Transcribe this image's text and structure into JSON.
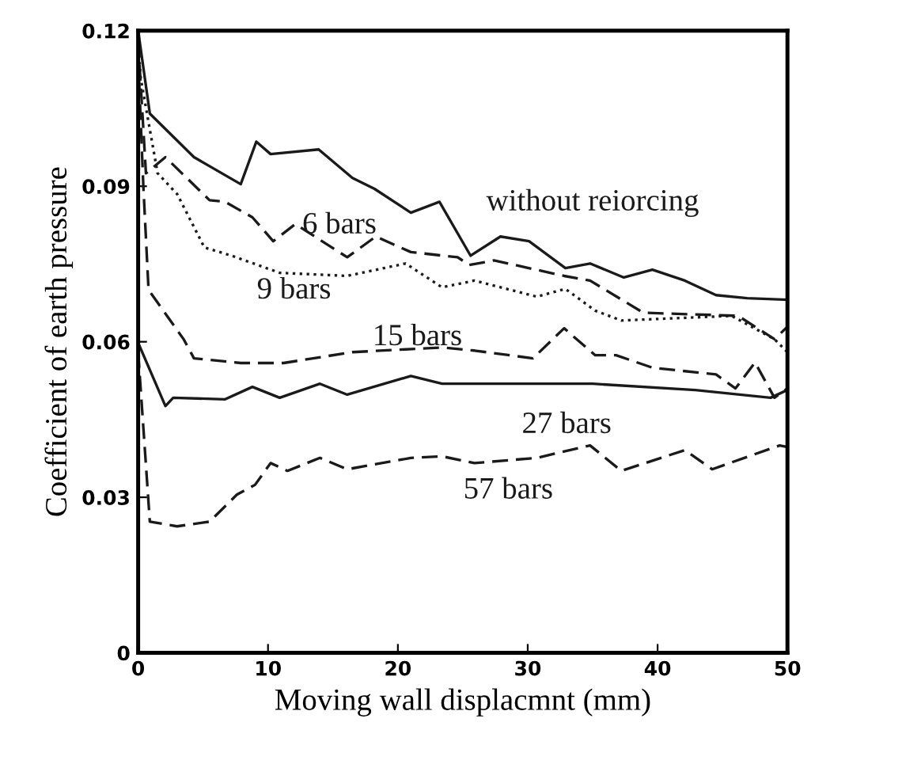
{
  "chart_data": {
    "type": "line",
    "xlabel": "Moving wall displacmnt (mm)",
    "ylabel": "Coefficient of earth pressure",
    "xlim": [
      0,
      50
    ],
    "xticks": [
      0,
      10,
      20,
      30,
      40,
      50
    ],
    "ylim": [
      0,
      0.12
    ],
    "yticks": [
      {
        "value": 0,
        "label": "0"
      },
      {
        "value": 0.03,
        "label": "0.03"
      },
      {
        "value": 0.06,
        "label": "0.06"
      },
      {
        "value": 0.09,
        "label": "0.09"
      },
      {
        "value": 0.12,
        "label": "0.12"
      }
    ],
    "grid": false,
    "marker": "none",
    "series": [
      {
        "name": "without reiorcing",
        "color": "#1a1a1a",
        "line_style": "solid",
        "x": [
          0,
          0.9,
          4.3,
          7.9,
          9.1,
          10.2,
          13.9,
          16.5,
          18.2,
          21,
          23.2,
          25.6,
          27.9,
          30.1,
          32.9,
          34.8,
          37.4,
          39.6,
          42.1,
          44.5,
          46.9,
          50
        ],
        "values": [
          0.12,
          0.104,
          0.0956,
          0.0904,
          0.0986,
          0.0962,
          0.0971,
          0.0916,
          0.0895,
          0.0849,
          0.087,
          0.0766,
          0.0803,
          0.0794,
          0.0742,
          0.0751,
          0.0724,
          0.0739,
          0.0718,
          0.069,
          0.0684,
          0.0681
        ]
      },
      {
        "name": "6 bars",
        "color": "#1a1a1a",
        "line_style": "dashed",
        "x": [
          0,
          0.6,
          2.1,
          5.5,
          6.7,
          8.8,
          10.4,
          12.1,
          16.1,
          18.3,
          21,
          24.6,
          25.5,
          27.4,
          32.8,
          34.8,
          38.9,
          46.2,
          49,
          50
        ],
        "values": [
          0.118,
          0.0925,
          0.0956,
          0.0873,
          0.087,
          0.084,
          0.0794,
          0.0827,
          0.0763,
          0.0803,
          0.0773,
          0.0763,
          0.0748,
          0.0757,
          0.0727,
          0.0718,
          0.0656,
          0.065,
          0.0605,
          0.0629
        ]
      },
      {
        "name": "9 bars",
        "color": "#1a1a1a",
        "line_style": "dotted",
        "x": [
          0,
          0.2,
          1.5,
          3.0,
          5.1,
          7.2,
          10.9,
          16.1,
          20.6,
          23.4,
          25.9,
          30.7,
          32.9,
          35.2,
          37.2,
          45.7,
          49,
          50
        ],
        "values": [
          0.118,
          0.1108,
          0.0925,
          0.0885,
          0.0782,
          0.0766,
          0.0733,
          0.0727,
          0.0751,
          0.0705,
          0.0718,
          0.0687,
          0.0702,
          0.066,
          0.0641,
          0.065,
          0.0605,
          0.058
        ]
      },
      {
        "name": "15 bars",
        "color": "#1a1a1a",
        "line_style": "dashed",
        "x": [
          0,
          0.4,
          0.8,
          3.5,
          4.3,
          7.9,
          11.2,
          16.5,
          23.4,
          25.9,
          30.4,
          32.8,
          35.2,
          36.8,
          39.6,
          44.5,
          46,
          47.5,
          49,
          50
        ],
        "values": [
          0.115,
          0.09,
          0.07,
          0.0605,
          0.0568,
          0.0559,
          0.0559,
          0.058,
          0.0589,
          0.0583,
          0.0568,
          0.0626,
          0.0574,
          0.0574,
          0.055,
          0.0537,
          0.051,
          0.056,
          0.0492,
          0.051
        ]
      },
      {
        "name": "27 bars",
        "color": "#1a1a1a",
        "line_style": "solid",
        "x": [
          0,
          2.1,
          2.7,
          6.7,
          8.8,
          10.9,
          14,
          16.1,
          21,
          23.4,
          35,
          42.9,
          48.7,
          50
        ],
        "values": [
          0.0598,
          0.0476,
          0.0492,
          0.0489,
          0.0513,
          0.0492,
          0.0519,
          0.0498,
          0.0534,
          0.0519,
          0.0519,
          0.0507,
          0.0492,
          0.0507
        ]
      },
      {
        "name": "57 bars",
        "color": "#1a1a1a",
        "line_style": "dashed",
        "x": [
          0,
          0.9,
          3,
          5.5,
          7.6,
          9,
          10.2,
          11.5,
          14,
          16.1,
          21,
          23.4,
          25.9,
          30.7,
          34.8,
          37.2,
          42.1,
          44.2,
          49.4,
          50
        ],
        "values": [
          0.058,
          0.0253,
          0.0244,
          0.0253,
          0.0305,
          0.0324,
          0.0366,
          0.0351,
          0.0376,
          0.0354,
          0.0376,
          0.0379,
          0.0366,
          0.0376,
          0.04,
          0.0351,
          0.0391,
          0.0354,
          0.04,
          0.0397
        ]
      }
    ]
  }
}
